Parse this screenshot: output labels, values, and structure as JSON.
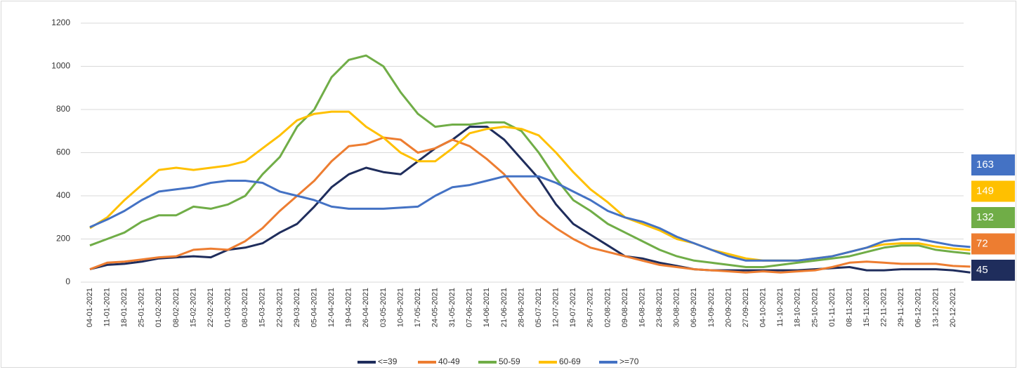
{
  "chart_data": {
    "type": "line",
    "categories": [
      "04-01-2021",
      "11-01-2021",
      "18-01-2021",
      "25-01-2021",
      "01-02-2021",
      "08-02-2021",
      "15-02-2021",
      "22-02-2021",
      "01-03-2021",
      "08-03-2021",
      "15-03-2021",
      "22-03-2021",
      "29-03-2021",
      "05-04-2021",
      "12-04-2021",
      "19-04-2021",
      "26-04-2021",
      "03-05-2021",
      "10-05-2021",
      "17-05-2021",
      "24-05-2021",
      "31-05-2021",
      "07-06-2021",
      "14-06-2021",
      "21-06-2021",
      "28-06-2021",
      "05-07-2021",
      "12-07-2021",
      "19-07-2021",
      "26-07-2021",
      "02-08-2021",
      "09-08-2021",
      "16-08-2021",
      "23-08-2021",
      "30-08-2021",
      "06-09-2021",
      "13-09-2021",
      "20-09-2021",
      "27-09-2021",
      "04-10-2021",
      "11-10-2021",
      "18-10-2021",
      "25-10-2021",
      "01-11-2021",
      "08-11-2021",
      "15-11-2021",
      "22-11-2021",
      "29-11-2021",
      "06-12-2021",
      "13-12-2021",
      "20-12-2021",
      null
    ],
    "series": [
      {
        "name": "<=39",
        "color": "#1f2d5c",
        "values": [
          60,
          80,
          85,
          95,
          110,
          115,
          120,
          115,
          150,
          160,
          180,
          230,
          270,
          350,
          440,
          500,
          530,
          510,
          500,
          560,
          620,
          660,
          720,
          720,
          660,
          570,
          480,
          360,
          270,
          220,
          170,
          120,
          110,
          90,
          75,
          60,
          55,
          55,
          55,
          55,
          55,
          55,
          60,
          65,
          70,
          55,
          55,
          60,
          60,
          60,
          55,
          45
        ]
      },
      {
        "name": "40-49",
        "color": "#ed7d31",
        "values": [
          60,
          90,
          95,
          105,
          115,
          120,
          150,
          155,
          150,
          190,
          250,
          330,
          400,
          470,
          560,
          630,
          640,
          670,
          660,
          600,
          620,
          660,
          630,
          570,
          500,
          400,
          310,
          250,
          200,
          160,
          140,
          120,
          100,
          80,
          70,
          60,
          55,
          50,
          45,
          50,
          45,
          50,
          55,
          70,
          90,
          95,
          90,
          85,
          85,
          85,
          75,
          72
        ]
      },
      {
        "name": "50-59",
        "color": "#70ad47",
        "values": [
          170,
          200,
          230,
          280,
          310,
          310,
          350,
          340,
          360,
          400,
          500,
          580,
          720,
          800,
          950,
          1030,
          1050,
          1000,
          880,
          780,
          720,
          730,
          730,
          740,
          740,
          700,
          600,
          480,
          380,
          330,
          270,
          230,
          190,
          150,
          120,
          100,
          90,
          80,
          70,
          70,
          80,
          90,
          100,
          110,
          120,
          140,
          160,
          170,
          170,
          150,
          140,
          132
        ]
      },
      {
        "name": "60-69",
        "color": "#ffc000",
        "values": [
          250,
          300,
          380,
          450,
          520,
          530,
          520,
          530,
          540,
          560,
          620,
          680,
          750,
          780,
          790,
          790,
          720,
          670,
          600,
          560,
          560,
          620,
          690,
          710,
          720,
          710,
          680,
          600,
          510,
          430,
          370,
          300,
          270,
          240,
          200,
          180,
          150,
          130,
          110,
          100,
          100,
          100,
          110,
          120,
          140,
          160,
          175,
          180,
          180,
          165,
          155,
          149
        ]
      },
      {
        "name": ">=70",
        "color": "#4472c4",
        "values": [
          255,
          290,
          330,
          380,
          420,
          430,
          440,
          460,
          470,
          470,
          460,
          420,
          400,
          380,
          350,
          340,
          340,
          340,
          345,
          350,
          400,
          440,
          450,
          470,
          490,
          490,
          490,
          460,
          420,
          380,
          330,
          300,
          280,
          250,
          210,
          180,
          150,
          120,
          100,
          100,
          100,
          100,
          110,
          120,
          140,
          160,
          190,
          200,
          200,
          185,
          170,
          163
        ]
      }
    ],
    "ylim": [
      0,
      1200
    ],
    "yticks": [
      0,
      200,
      400,
      600,
      800,
      1000,
      1200
    ],
    "grid": true,
    "legend": "bottom"
  }
}
